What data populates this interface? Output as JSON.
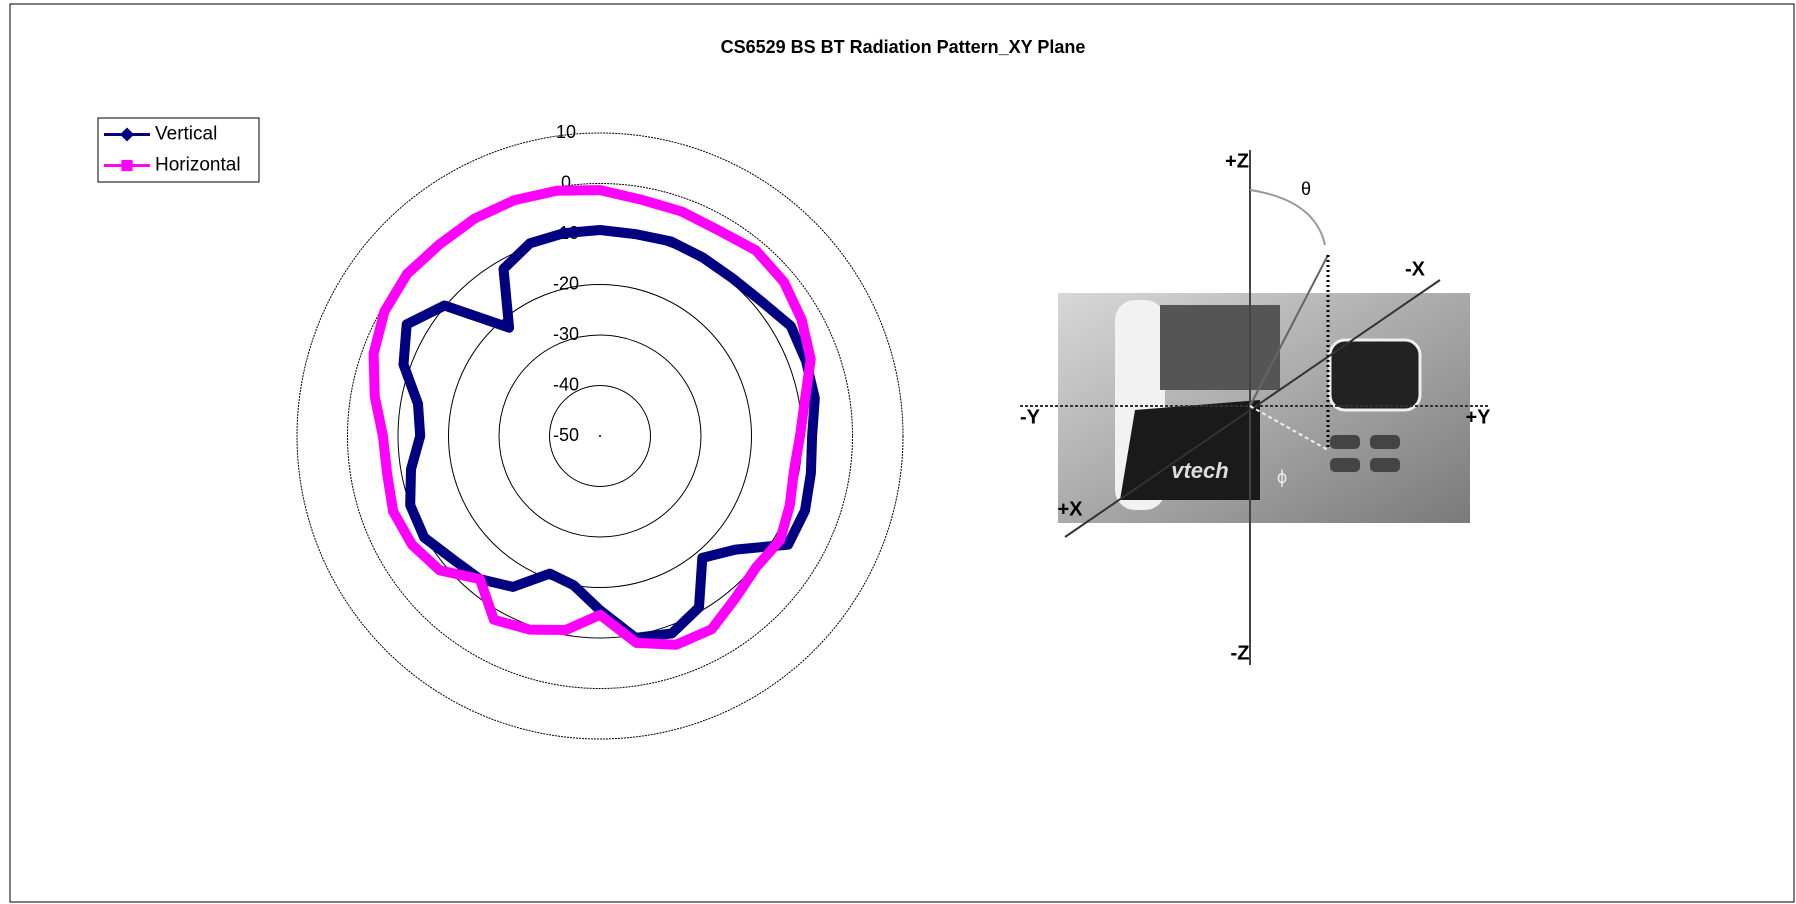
{
  "chart_data": {
    "type": "radar",
    "title": "CS6529 BS BT Radiation Pattern_XY Plane",
    "ylim": [
      -50,
      10
    ],
    "yticks": [
      -50,
      -40,
      -30,
      -20,
      -10,
      0,
      10
    ],
    "grid": true,
    "legend": "top-left",
    "series": [
      {
        "name": "Vertical",
        "color": "#000080",
        "marker": "diamond",
        "values": [
          -9.2,
          -9.4,
          -9,
          -9.2,
          -9.2,
          -8.4,
          -6.4,
          -6.6,
          -6.8,
          -8,
          -7.6,
          -6.8,
          -7,
          -15,
          -18.5,
          -10.8,
          -8.4,
          -9.4,
          -15.5,
          -20,
          -21,
          -15.5,
          -13,
          -12,
          -9.8,
          -10,
          -12,
          -14.4,
          -13.4,
          -8.6,
          -5.8,
          -9.8,
          -22,
          -11.8,
          -9.4,
          -9.2
        ]
      },
      {
        "name": "Horizontal",
        "color": "#ff00ff",
        "marker": "square",
        "values": [
          -1.3,
          -2.5,
          -2.7,
          -3,
          -2,
          -2.5,
          -3.9,
          -5.6,
          -8.8,
          -10.4,
          -11,
          -10,
          -8.8,
          -9.6,
          -8.2,
          -5.8,
          -6,
          -8.4,
          -14.6,
          -11,
          -9.2,
          -8,
          -13,
          -8.6,
          -7,
          -6.4,
          -7.2,
          -7,
          -4.7,
          -2.3,
          -0.7,
          -0.1,
          -0.5,
          -0.3,
          -0.3,
          -0.7
        ]
      }
    ]
  },
  "photo": {
    "labels": [
      "+Z",
      "-Z",
      "+Y",
      "-Y",
      "+X",
      "-X",
      "θ",
      "ϕ",
      "vtech"
    ]
  }
}
